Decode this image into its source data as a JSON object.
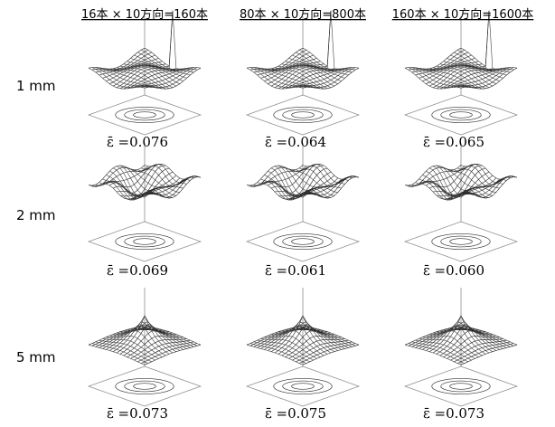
{
  "columns": [
    "16本 × 10方向=160本",
    "80本 × 10方向=800本",
    "160本 × 10方向=1600本"
  ],
  "rows": [
    {
      "label": "1 mm",
      "cells": [
        "ε̄ =0.076",
        "ε̄ =0.064",
        "ε̄ =0.065"
      ]
    },
    {
      "label": "2 mm",
      "cells": [
        "ε̄ =0.069",
        "ε̄ =0.061",
        "ε̄ =0.060"
      ]
    },
    {
      "label": "5 mm",
      "cells": [
        "ε̄ =0.073",
        "ε̄ =0.075",
        "ε̄ =0.073"
      ]
    }
  ]
}
